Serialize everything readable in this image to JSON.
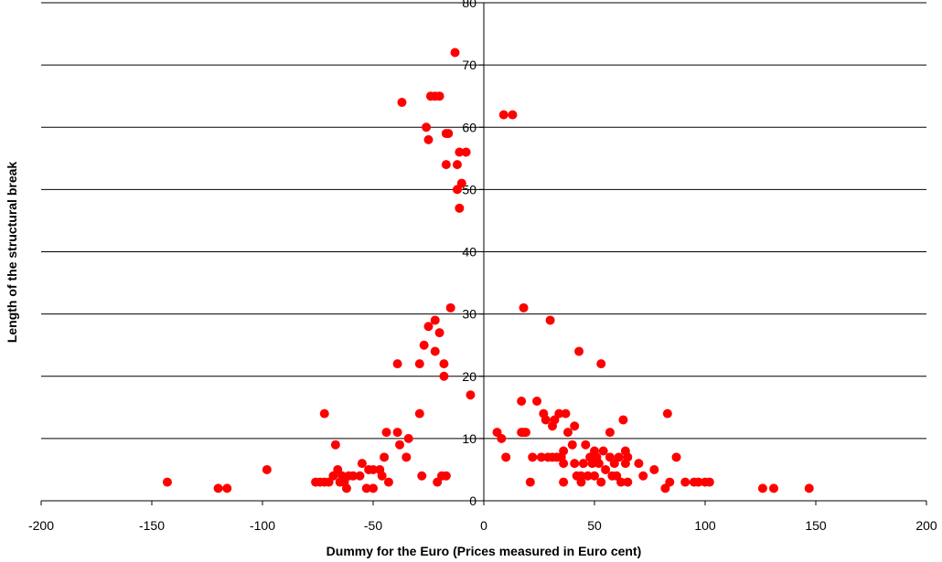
{
  "chart_data": {
    "type": "scatter",
    "title": "",
    "xlabel": "Dummy for the Euro (Prices measured in Euro cent)",
    "ylabel": "Length of the structural break",
    "xlim": [
      -200,
      200
    ],
    "ylim": [
      0,
      80
    ],
    "x_ticks": [
      "-200",
      "-150",
      "-100",
      "-50",
      "0",
      "50",
      "100",
      "150",
      "200"
    ],
    "y_ticks": [
      "0",
      "10",
      "20",
      "30",
      "40",
      "50",
      "60",
      "70",
      "80"
    ],
    "grid": "horizontal",
    "legend": "none",
    "marker_color": "#ff0000",
    "points": [
      [
        -143,
        3
      ],
      [
        -120,
        2
      ],
      [
        -116,
        2
      ],
      [
        -98,
        5
      ],
      [
        -76,
        3
      ],
      [
        -74,
        3
      ],
      [
        -72,
        3
      ],
      [
        -72,
        14
      ],
      [
        -70,
        3
      ],
      [
        -68,
        4
      ],
      [
        -67,
        9
      ],
      [
        -66,
        5
      ],
      [
        -65,
        3
      ],
      [
        -64,
        4
      ],
      [
        -63,
        3
      ],
      [
        -62,
        2
      ],
      [
        -61,
        4
      ],
      [
        -59,
        4
      ],
      [
        -56,
        4
      ],
      [
        -55,
        6
      ],
      [
        -53,
        2
      ],
      [
        -52,
        5
      ],
      [
        -50,
        5
      ],
      [
        -50,
        2
      ],
      [
        -47,
        5
      ],
      [
        -46,
        4
      ],
      [
        -45,
        7
      ],
      [
        -44,
        11
      ],
      [
        -43,
        3
      ],
      [
        -39,
        22
      ],
      [
        -39,
        11
      ],
      [
        -38,
        9
      ],
      [
        -37,
        64
      ],
      [
        -35,
        7
      ],
      [
        -34,
        10
      ],
      [
        -29,
        14
      ],
      [
        -29,
        22
      ],
      [
        -28,
        4
      ],
      [
        -27,
        25
      ],
      [
        -26,
        60
      ],
      [
        -25,
        28
      ],
      [
        -25,
        58
      ],
      [
        -24,
        65
      ],
      [
        -22,
        24
      ],
      [
        -22,
        29
      ],
      [
        -22,
        65
      ],
      [
        -21,
        3
      ],
      [
        -20,
        65
      ],
      [
        -20,
        27
      ],
      [
        -19,
        4
      ],
      [
        -18,
        22
      ],
      [
        -18,
        20
      ],
      [
        -17,
        4
      ],
      [
        -17,
        59
      ],
      [
        -17,
        54
      ],
      [
        -16,
        59
      ],
      [
        -15,
        31
      ],
      [
        -13,
        72
      ],
      [
        -12,
        54
      ],
      [
        -12,
        50
      ],
      [
        -11,
        47
      ],
      [
        -11,
        56
      ],
      [
        -10,
        51
      ],
      [
        -8,
        56
      ],
      [
        -6,
        17
      ],
      [
        6,
        11
      ],
      [
        8,
        10
      ],
      [
        9,
        62
      ],
      [
        10,
        7
      ],
      [
        13,
        62
      ],
      [
        17,
        11
      ],
      [
        17,
        16
      ],
      [
        18,
        31
      ],
      [
        18,
        11
      ],
      [
        19,
        11
      ],
      [
        21,
        3
      ],
      [
        22,
        7
      ],
      [
        24,
        16
      ],
      [
        26,
        7
      ],
      [
        27,
        14
      ],
      [
        28,
        13
      ],
      [
        29,
        7
      ],
      [
        30,
        29
      ],
      [
        31,
        12
      ],
      [
        31,
        7
      ],
      [
        32,
        13
      ],
      [
        33,
        7
      ],
      [
        34,
        14
      ],
      [
        35,
        7
      ],
      [
        36,
        8
      ],
      [
        36,
        6
      ],
      [
        36,
        3
      ],
      [
        37,
        14
      ],
      [
        38,
        11
      ],
      [
        40,
        9
      ],
      [
        41,
        12
      ],
      [
        41,
        6
      ],
      [
        42,
        4
      ],
      [
        43,
        24
      ],
      [
        44,
        3
      ],
      [
        44,
        4
      ],
      [
        45,
        6
      ],
      [
        46,
        9
      ],
      [
        47,
        4
      ],
      [
        48,
        7
      ],
      [
        49,
        6
      ],
      [
        50,
        4
      ],
      [
        50,
        8
      ],
      [
        51,
        7
      ],
      [
        52,
        6
      ],
      [
        53,
        22
      ],
      [
        53,
        3
      ],
      [
        54,
        8
      ],
      [
        55,
        5
      ],
      [
        57,
        11
      ],
      [
        57,
        7
      ],
      [
        58,
        4
      ],
      [
        59,
        6
      ],
      [
        60,
        4
      ],
      [
        61,
        7
      ],
      [
        62,
        3
      ],
      [
        63,
        13
      ],
      [
        64,
        8
      ],
      [
        64,
        6
      ],
      [
        65,
        3
      ],
      [
        65,
        7
      ],
      [
        70,
        6
      ],
      [
        72,
        4
      ],
      [
        77,
        5
      ],
      [
        82,
        2
      ],
      [
        83,
        14
      ],
      [
        84,
        3
      ],
      [
        87,
        7
      ],
      [
        91,
        3
      ],
      [
        95,
        3
      ],
      [
        97,
        3
      ],
      [
        100,
        3
      ],
      [
        102,
        3
      ],
      [
        126,
        2
      ],
      [
        131,
        2
      ],
      [
        147,
        2
      ]
    ]
  }
}
